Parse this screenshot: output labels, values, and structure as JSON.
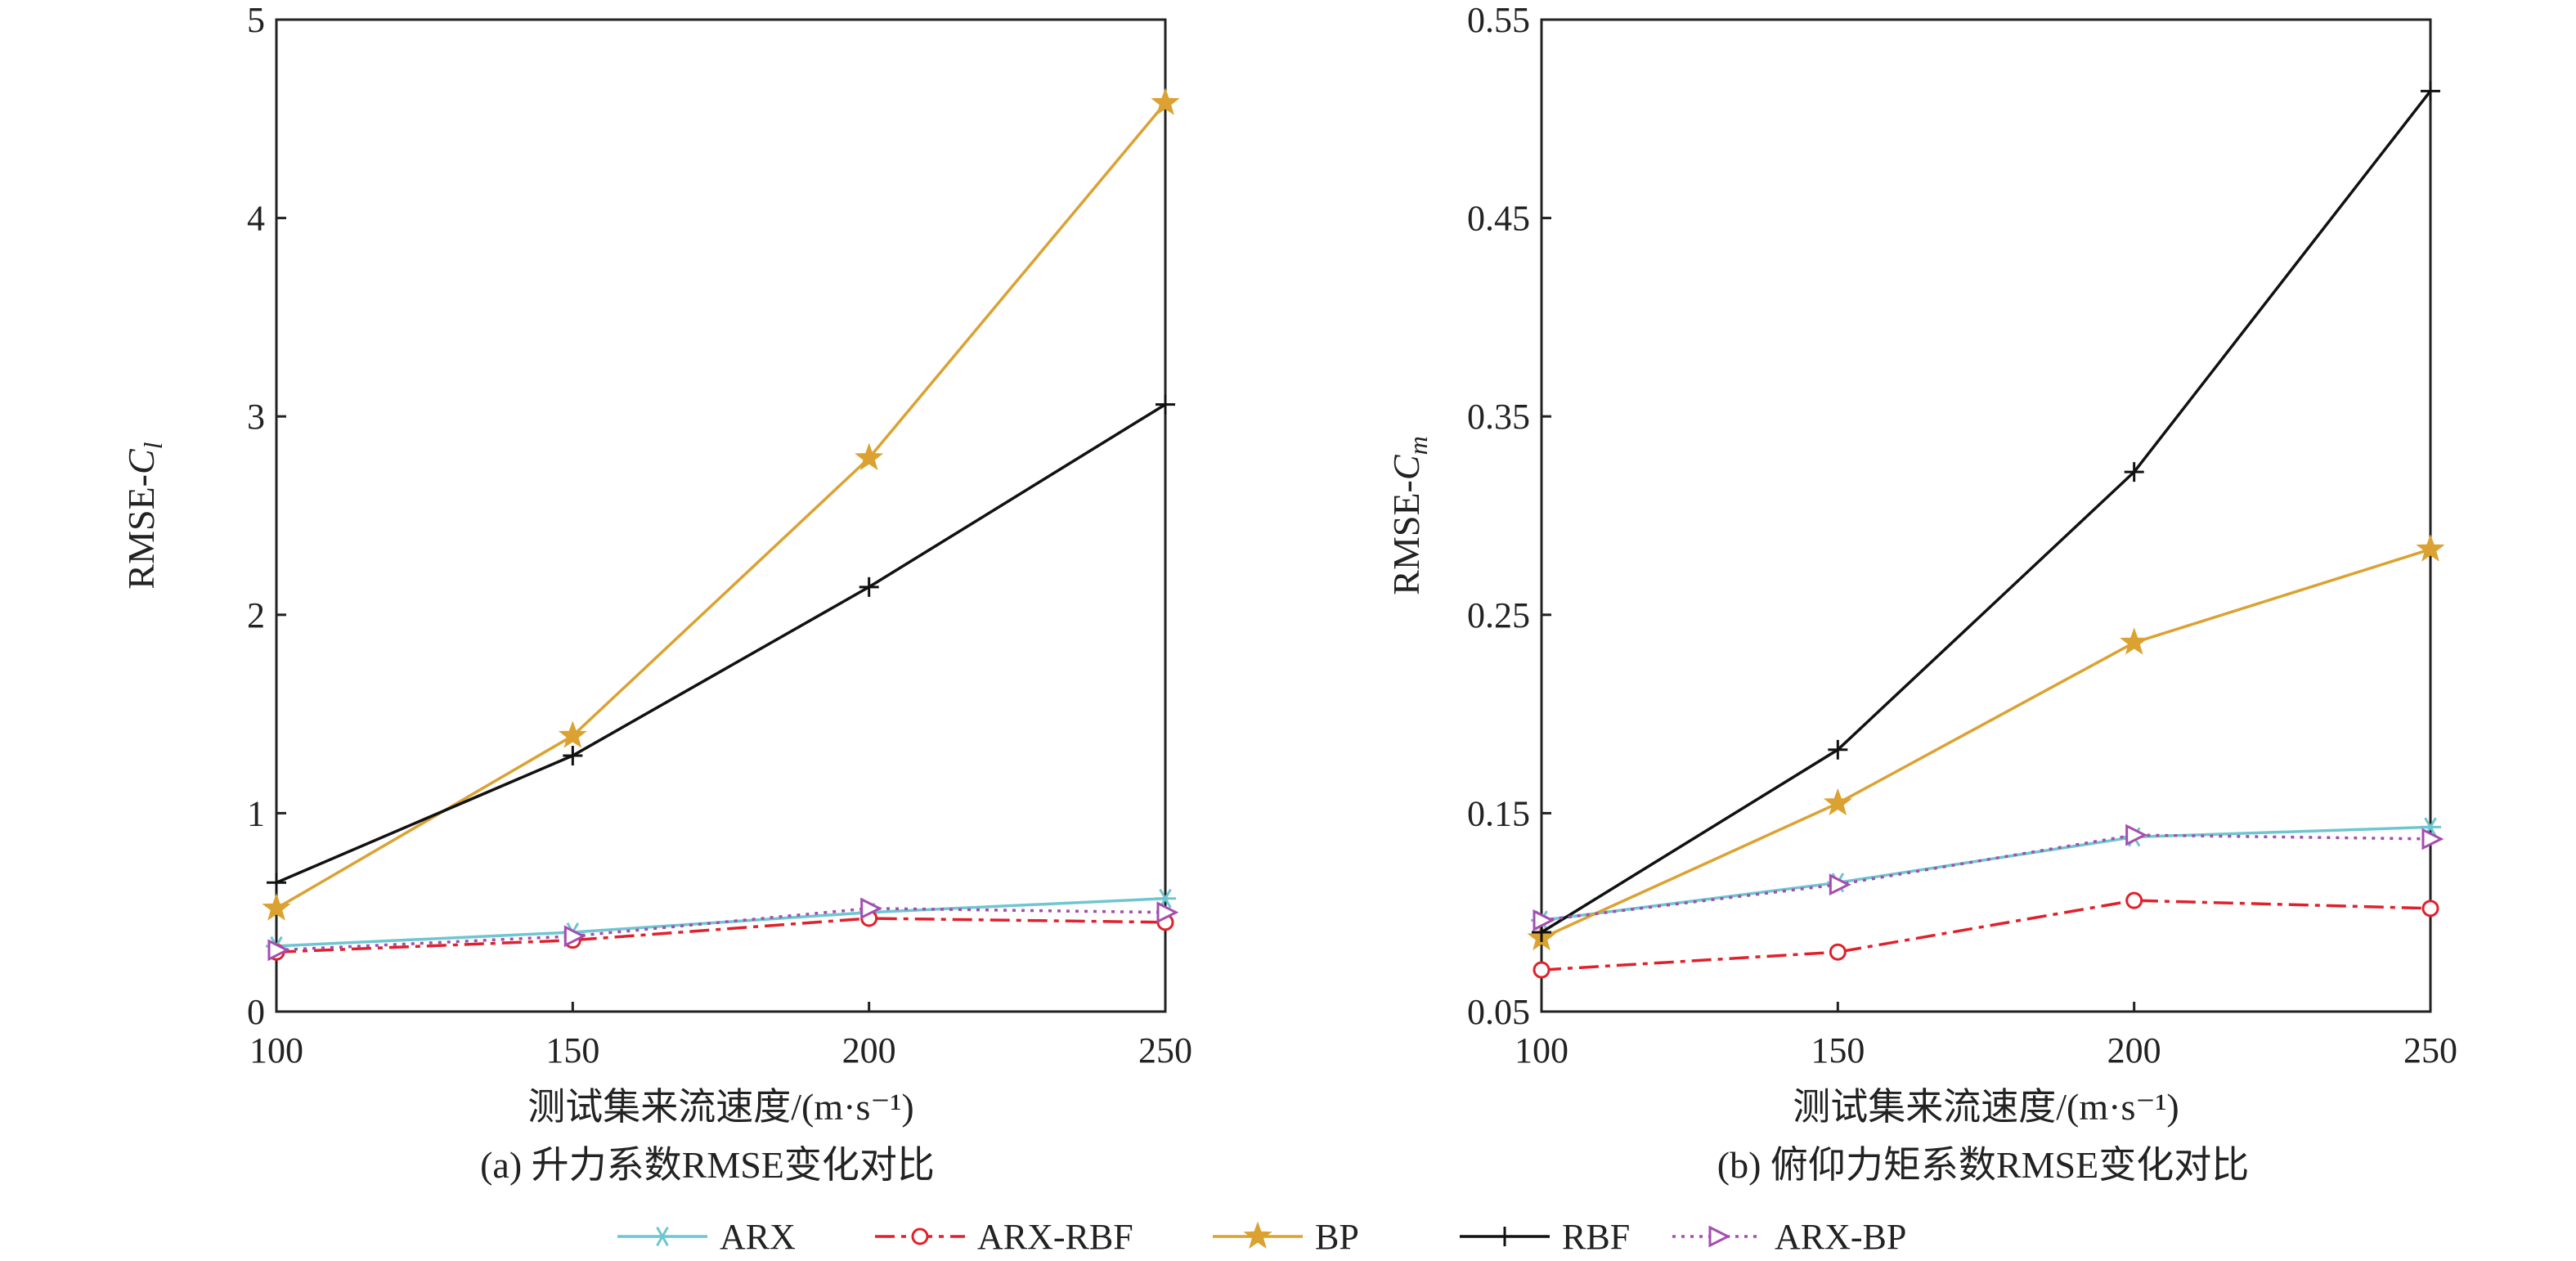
{
  "chart_data": [
    {
      "type": "line",
      "caption": "(a) 升力系数RMSE变化对比",
      "xlabel": "测试集来流速度/(m·s⁻¹)",
      "ylabel_prefix": "RMSE-",
      "ylabel_var": "C",
      "ylabel_sub": "l",
      "x": [
        100,
        150,
        200,
        250
      ],
      "xticks": [
        "100",
        "150",
        "200",
        "250"
      ],
      "yticks": [
        "0",
        "1",
        "2",
        "3",
        "4",
        "5"
      ],
      "xlim": [
        100,
        250
      ],
      "ylim": [
        0,
        5
      ],
      "series": [
        {
          "name": "ARX",
          "values": [
            0.33,
            0.4,
            0.5,
            0.57
          ]
        },
        {
          "name": "ARX-RBF",
          "values": [
            0.3,
            0.36,
            0.47,
            0.45
          ]
        },
        {
          "name": "BP",
          "values": [
            0.52,
            1.39,
            2.79,
            4.58
          ]
        },
        {
          "name": "RBF",
          "values": [
            0.65,
            1.29,
            2.14,
            3.06
          ]
        },
        {
          "name": "ARX-BP",
          "values": [
            0.31,
            0.38,
            0.52,
            0.5
          ]
        }
      ]
    },
    {
      "type": "line",
      "caption": "(b) 俯仰力矩系数RMSE变化对比",
      "xlabel": "测试集来流速度/(m·s⁻¹)",
      "ylabel_prefix": "RMSE-",
      "ylabel_var": "C",
      "ylabel_sub": "m",
      "x": [
        100,
        150,
        200,
        250
      ],
      "xticks": [
        "100",
        "150",
        "200",
        "250"
      ],
      "yticks": [
        "0.05",
        "0.15",
        "0.25",
        "0.35",
        "0.45",
        "0.55"
      ],
      "xlim": [
        100,
        250
      ],
      "ylim": [
        0.05,
        0.55
      ],
      "series": [
        {
          "name": "ARX",
          "values": [
            0.096,
            0.115,
            0.138,
            0.143
          ]
        },
        {
          "name": "ARX-RBF",
          "values": [
            0.071,
            0.08,
            0.106,
            0.102
          ]
        },
        {
          "name": "BP",
          "values": [
            0.087,
            0.155,
            0.236,
            0.283
          ]
        },
        {
          "name": "RBF",
          "values": [
            0.09,
            0.182,
            0.322,
            0.514
          ]
        },
        {
          "name": "ARX-BP",
          "values": [
            0.096,
            0.114,
            0.139,
            0.137
          ]
        }
      ]
    }
  ],
  "legend": [
    {
      "name": "ARX",
      "color": "#6ec6d0",
      "dash": "",
      "marker": "asterisk"
    },
    {
      "name": "ARX-RBF",
      "color": "#e0212b",
      "dash": "24,8,6,8",
      "marker": "circle"
    },
    {
      "name": "BP",
      "color": "#dba232",
      "dash": "",
      "marker": "star"
    },
    {
      "name": "RBF",
      "color": "#111111",
      "dash": "",
      "marker": "plus"
    },
    {
      "name": "ARX-BP",
      "color": "#a54db0",
      "dash": "4,7",
      "marker": "triangle-right"
    }
  ]
}
